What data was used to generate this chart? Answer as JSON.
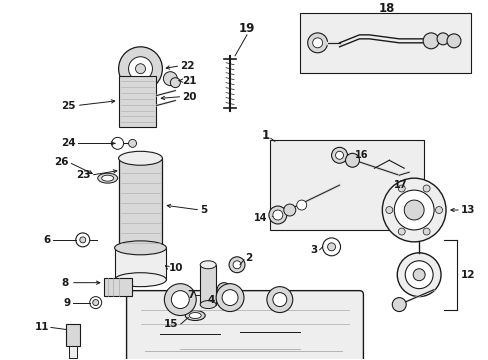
{
  "bg_color": "#ffffff",
  "line_color": "#1a1a1a",
  "gray_fill": "#d8d8d8",
  "light_gray": "#eeeeee",
  "mid_gray": "#aaaaaa",
  "figsize": [
    4.89,
    3.6
  ],
  "dpi": 100,
  "fs_num": 7.5,
  "fs_big": 8.5
}
